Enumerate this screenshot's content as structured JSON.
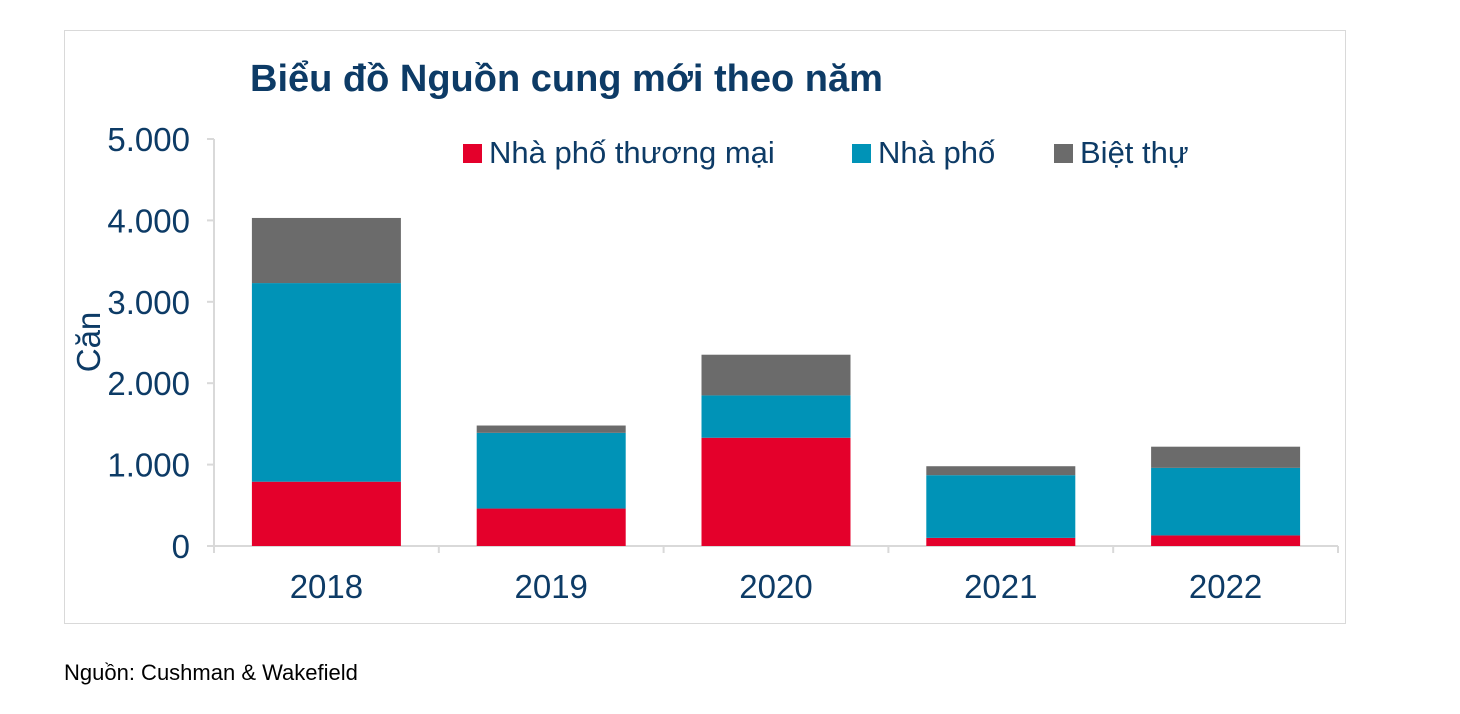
{
  "chart_data": {
    "type": "bar",
    "stacked": true,
    "title": "Biểu đồ Nguồn cung mới theo năm",
    "ylabel": "Căn",
    "xlabel": "",
    "ylim": [
      0,
      5000
    ],
    "yticks": [
      "0",
      "1.000",
      "2.000",
      "3.000",
      "4.000",
      "5.000"
    ],
    "grid": false,
    "legend": "top",
    "categories": [
      "2018",
      "2019",
      "2020",
      "2021",
      "2022"
    ],
    "series": [
      {
        "name": "Nhà phố thương mại",
        "color": "#e4002b",
        "values": [
          790,
          460,
          1330,
          100,
          130
        ]
      },
      {
        "name": "Nhà phố",
        "color": "#0093b7",
        "values": [
          2440,
          930,
          520,
          770,
          830
        ]
      },
      {
        "name": "Biệt thự",
        "color": "#6b6b6b",
        "values": [
          800,
          90,
          500,
          110,
          260
        ]
      }
    ]
  },
  "source": "Nguồn: Cushman & Wakefield",
  "colors": {
    "axis": "#d9d9d9",
    "text": "#0d3b66"
  }
}
